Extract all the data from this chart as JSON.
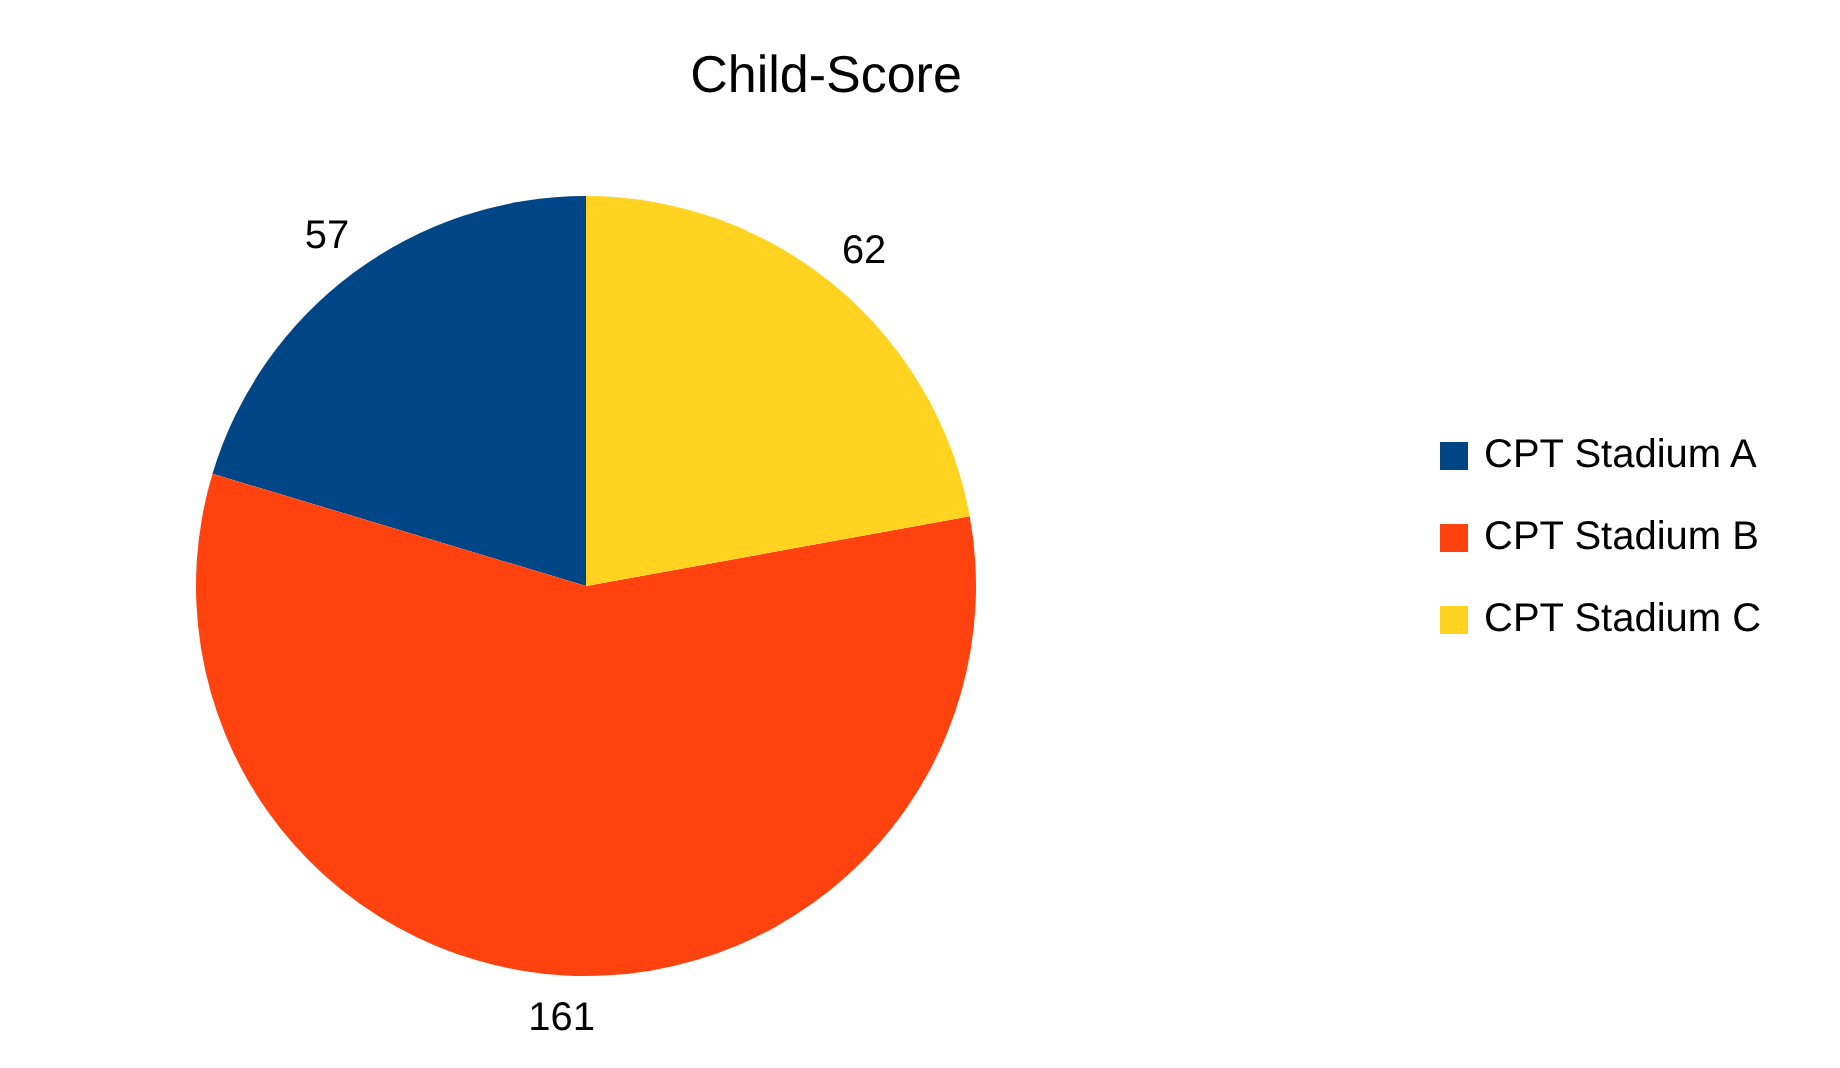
{
  "chart_data": {
    "type": "pie",
    "title": "Child-Score",
    "categories": [
      "CPT Stadium A",
      "CPT Stadium B",
      "CPT Stadium C"
    ],
    "values": [
      57,
      161,
      62
    ],
    "colors": [
      "#004586",
      "#ff420e",
      "#ffd320"
    ],
    "data_labels": true,
    "legend": "right"
  }
}
